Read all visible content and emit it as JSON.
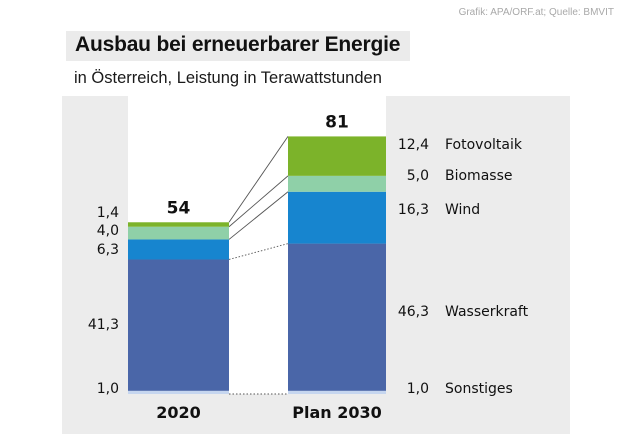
{
  "credit": "Grafik: APA/ORF.at; Quelle: BMVIT",
  "title": "Ausbau bei erneuerbarer Energie",
  "subtitle": "in Österreich, Leistung in Terawattstunden",
  "colors": {
    "Sonstiges": "#c6d6ef",
    "Wasserkraft": "#4a66a8",
    "Wind": "#1785cf",
    "Biomasse": "#8fd0a8",
    "Fotovoltaik": "#7cb32a",
    "panel": "#ececec"
  },
  "chart_data": {
    "type": "bar",
    "stacked": true,
    "categories": [
      "2020",
      "Plan 2030"
    ],
    "totals": [
      "54",
      "81"
    ],
    "series": [
      {
        "name": "Sonstiges",
        "values": [
          1.0,
          1.0
        ],
        "labels": [
          "1,0",
          "1,0"
        ]
      },
      {
        "name": "Wasserkraft",
        "values": [
          41.3,
          46.3
        ],
        "labels": [
          "41,3",
          "46,3"
        ]
      },
      {
        "name": "Wind",
        "values": [
          6.3,
          16.3
        ],
        "labels": [
          "6,3",
          "16,3"
        ]
      },
      {
        "name": "Biomasse",
        "values": [
          4.0,
          5.0
        ],
        "labels": [
          "4,0",
          "5,0"
        ]
      },
      {
        "name": "Fotovoltaik",
        "values": [
          1.4,
          12.4
        ],
        "labels": [
          "1,4",
          "12,4"
        ]
      }
    ],
    "legend": "right of second bar",
    "grid": false
  }
}
